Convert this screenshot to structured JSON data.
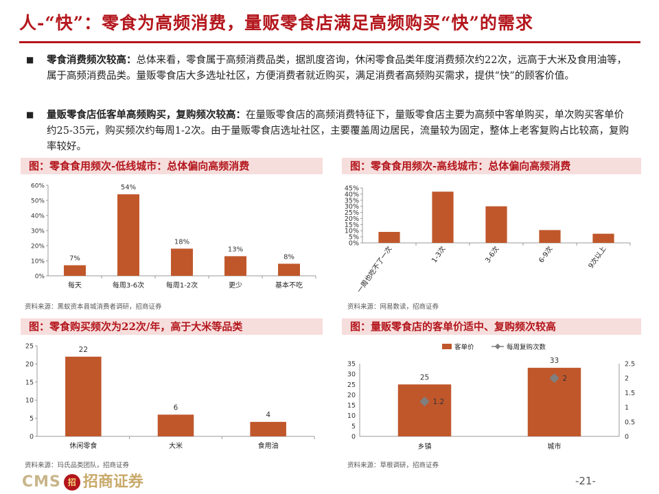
{
  "title": "人-“快”：零食为高频消费，量贩零食店满足高频购买“快”的需求",
  "bullets": [
    {
      "bold": "零食消费频次较高：",
      "text": "总体来看，零食属于高频消费品类，据凯度咨询，休闲零食品类年度消费频次约22次，远高于大米及食用油等，属于高频消费品类。量贩零食店大多选址社区，方便消费者就近购买，满足消费者高频购买需求，提供“快”的顾客价值。"
    },
    {
      "bold": "量贩零食店低客单高频购买，复购频次较高：",
      "text": "在量贩零食店的高频消费特征下，量贩零食店主要为高频中客单购买，单次购买客单价约25-35元，购买频次约每周1-2次。由于量贩零食店选址社区，主要覆盖周边居民，流量较为固定，整体上老客复购占比较高，复购率较好。"
    }
  ],
  "panels": {
    "p1": {
      "heading": "图：零食食用频次-低线城市：总体偏向高频消费",
      "source": "资料来源：黑蚁资本县城消费者调研，招商证券"
    },
    "p2": {
      "heading": "图：零食食用频次-高线城市：总体偏向高频消费",
      "source": "资料来源：网易数读，招商证券"
    },
    "p3": {
      "heading": "图：零食购买频次为22次/年，高于大米等品类",
      "source": "资料来源：玛氏品类团队，招商证券"
    },
    "p4": {
      "heading": "图：量贩零食店的客单价适中、复购频次较高",
      "source": "资料来源：草根调研，招商证券"
    }
  },
  "chart_data": [
    {
      "type": "bar",
      "categories": [
        "每天",
        "每周3-6次",
        "每周1-2次",
        "更少",
        "基本不吃"
      ],
      "values": [
        7,
        54,
        18,
        13,
        8
      ],
      "value_labels": [
        "7%",
        "54%",
        "18%",
        "13%",
        "8%"
      ],
      "yticks": [
        "0%",
        "10%",
        "20%",
        "30%",
        "40%",
        "50%",
        "60%"
      ],
      "ylim": [
        0,
        60
      ],
      "color": "#c0572b"
    },
    {
      "type": "bar",
      "categories": [
        "一周也吃不了一次",
        "1-3次",
        "3-6次",
        "6-9次",
        "9次以上"
      ],
      "values": [
        9,
        42,
        30,
        10.5,
        7.5
      ],
      "yticks": [
        "0%",
        "5%",
        "10%",
        "15%",
        "20%",
        "25%",
        "30%",
        "35%",
        "40%",
        "45%"
      ],
      "ylim": [
        0,
        45
      ],
      "color": "#c0572b"
    },
    {
      "type": "bar",
      "categories": [
        "休闲零食",
        "大米",
        "食用油"
      ],
      "values": [
        22,
        6,
        4
      ],
      "value_labels": [
        "22",
        "6",
        "4"
      ],
      "yticks": [
        "0",
        "5",
        "10",
        "15",
        "20",
        "25"
      ],
      "ylim": [
        0,
        25
      ],
      "color": "#c0572b"
    },
    {
      "type": "bar",
      "categories": [
        "乡镇",
        "城市"
      ],
      "series": [
        {
          "name": "客单价",
          "values": [
            25,
            33
          ],
          "value_labels": [
            "25",
            "33"
          ],
          "axis": "left",
          "color": "#c0572b"
        },
        {
          "name": "每周复购次数",
          "values": [
            1.2,
            2
          ],
          "value_labels": [
            "1.2",
            "2"
          ],
          "axis": "right",
          "color": "#7f7f7f"
        }
      ],
      "yticks_left": [
        "0",
        "5",
        "10",
        "15",
        "20",
        "25",
        "30",
        "35"
      ],
      "ylim_left": [
        0,
        35
      ],
      "yticks_right": [
        "0",
        "0.5",
        "1",
        "1.5",
        "2",
        "2.5"
      ],
      "ylim_right": [
        0,
        2.5
      ],
      "legend": "top"
    }
  ],
  "footer": {
    "logo_text": "CMS",
    "badge": "招",
    "logo_cn": "招商证券",
    "page": "-21-"
  }
}
